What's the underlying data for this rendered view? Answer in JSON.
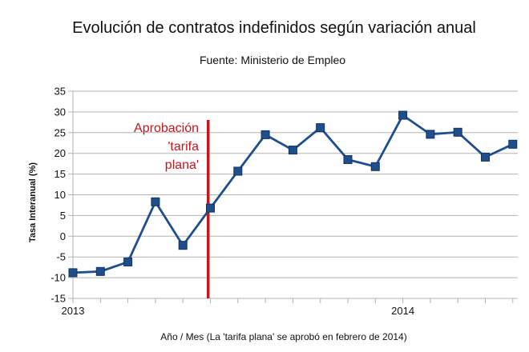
{
  "chart_data": {
    "type": "line",
    "title": "Evolución de contratos indefinidos según variación anual",
    "subtitle": "Fuente: Ministerio de Empleo",
    "xlabel": "Año / Mes (La 'tarifa plana' se aprobó en febrero de 2014)",
    "ylabel": "Tasa Interanual (%)",
    "ylim": [
      -15,
      35
    ],
    "yticks": [
      -15,
      -10,
      -5,
      0,
      5,
      10,
      15,
      20,
      25,
      30,
      35
    ],
    "x_tick_labels": [
      {
        "index": 0,
        "label": "2013"
      },
      {
        "index": 12,
        "label": "2014"
      }
    ],
    "grid": true,
    "legend": "none",
    "series": [
      {
        "color": "#1f4e8c",
        "marker": "square",
        "values": [
          -8.8,
          -8.5,
          -6.2,
          8.3,
          -2.2,
          6.8,
          15.7,
          24.5,
          20.8,
          26.2,
          18.5,
          16.8,
          29.2,
          24.6,
          25.1,
          19.1,
          22.2
        ]
      }
    ],
    "annotation": {
      "lines": [
        "Aprobación",
        "'tarifa",
        "plana'"
      ],
      "line_x_index": 5,
      "color": "#c0191e"
    }
  }
}
